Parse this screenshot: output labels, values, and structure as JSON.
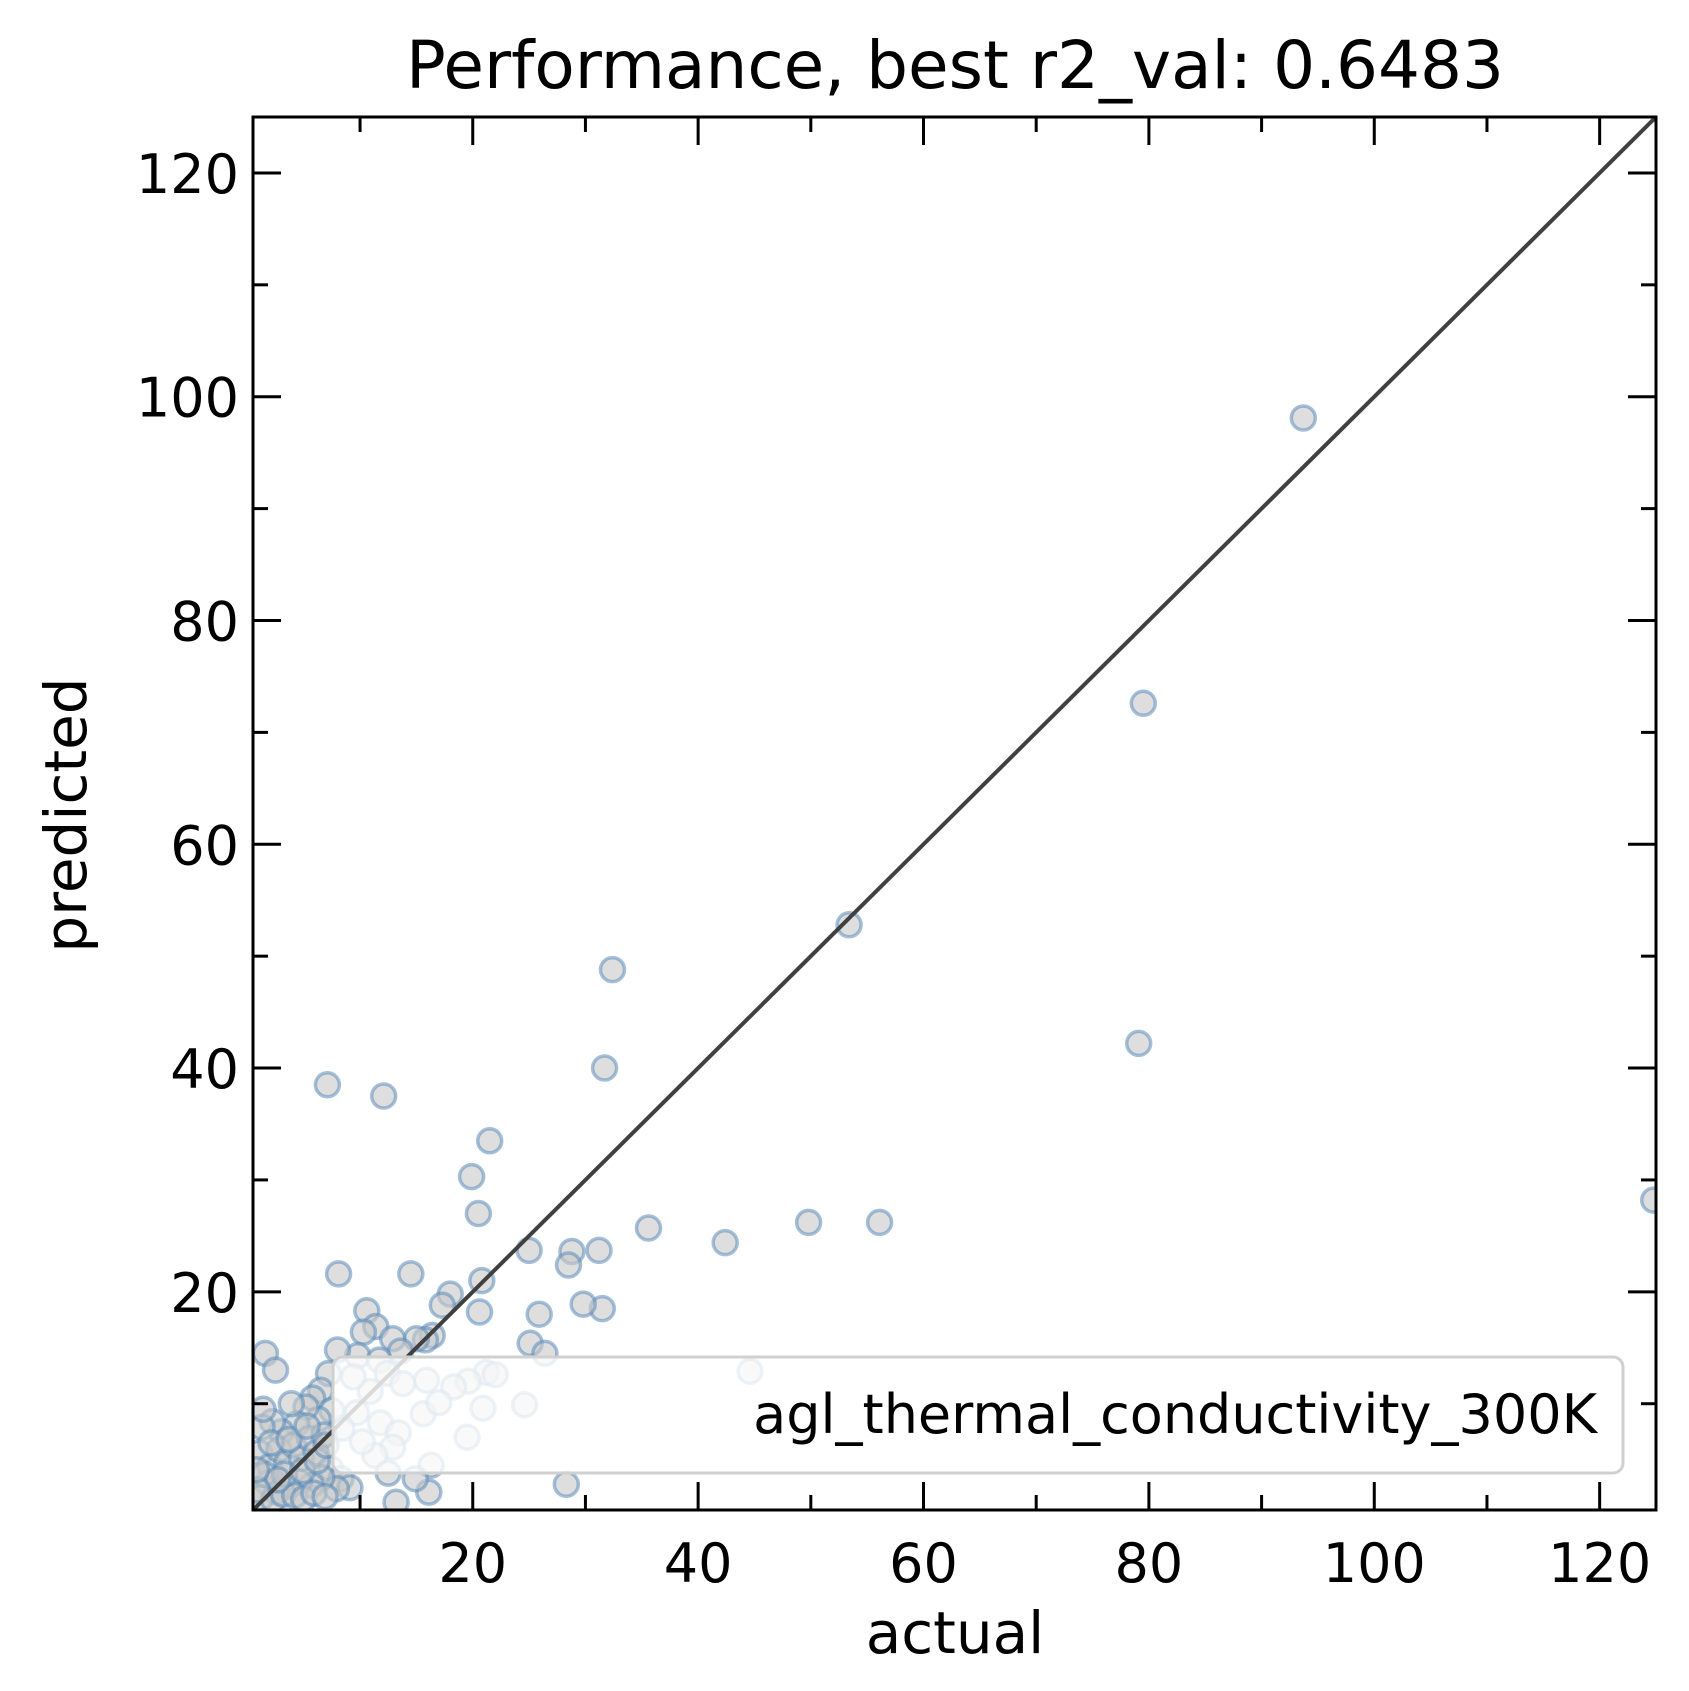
{
  "chart_data": {
    "type": "scatter",
    "title": "Performance, best r2_val: 0.6483",
    "xlabel": "actual",
    "ylabel": "predicted",
    "xlim": [
      0.5,
      125
    ],
    "ylim": [
      0.5,
      125
    ],
    "x_ticks": [
      20,
      40,
      60,
      80,
      100,
      120
    ],
    "y_ticks": [
      20,
      40,
      60,
      80,
      100,
      120
    ],
    "minor_tick_step": 10,
    "legend": {
      "label": "agl_thermal_conductivity_300K",
      "placement": "lower-right"
    },
    "reference_line": "y = x",
    "colors": {
      "marker_face": "#c8c8c8",
      "marker_edge": "#5b8db8",
      "diagonal": "#404040",
      "axes": "#000000"
    },
    "series": [
      {
        "name": "agl_thermal_conductivity_300K",
        "points": [
          [
            93.7,
            98.1
          ],
          [
            79.5,
            72.6
          ],
          [
            79.1,
            42.2
          ],
          [
            53.4,
            52.8
          ],
          [
            56.1,
            26.2
          ],
          [
            49.8,
            26.2
          ],
          [
            42.4,
            24.4
          ],
          [
            35.6,
            25.7
          ],
          [
            32.4,
            48.8
          ],
          [
            31.7,
            40.0
          ],
          [
            31.2,
            23.7
          ],
          [
            31.5,
            18.5
          ],
          [
            29.8,
            18.9
          ],
          [
            28.8,
            23.6
          ],
          [
            28.5,
            22.4
          ],
          [
            25.9,
            18.0
          ],
          [
            25.1,
            15.4
          ],
          [
            26.4,
            14.5
          ],
          [
            25.0,
            23.7
          ],
          [
            28.3,
            2.8
          ],
          [
            21.5,
            33.5
          ],
          [
            19.9,
            30.3
          ],
          [
            20.5,
            27.0
          ],
          [
            20.8,
            21.0
          ],
          [
            20.6,
            18.2
          ],
          [
            21.2,
            12.8
          ],
          [
            20.9,
            9.6
          ],
          [
            19.6,
            12.0
          ],
          [
            19.5,
            7.0
          ],
          [
            18.0,
            19.8
          ],
          [
            17.3,
            18.8
          ],
          [
            16.4,
            16.1
          ],
          [
            15.8,
            15.7
          ],
          [
            15.0,
            15.8
          ],
          [
            14.5,
            21.6
          ],
          [
            15.9,
            12.1
          ],
          [
            15.6,
            9.1
          ],
          [
            16.3,
            4.5
          ],
          [
            16.1,
            2.1
          ],
          [
            14.9,
            3.3
          ],
          [
            12.1,
            37.5
          ],
          [
            7.1,
            38.5
          ],
          [
            8.1,
            21.6
          ],
          [
            10.6,
            18.3
          ],
          [
            11.4,
            16.9
          ],
          [
            10.3,
            16.4
          ],
          [
            12.9,
            15.8
          ],
          [
            13.6,
            14.7
          ],
          [
            9.8,
            14.3
          ],
          [
            8.0,
            14.8
          ],
          [
            11.7,
            13.9
          ],
          [
            12.4,
            12.7
          ],
          [
            13.8,
            11.8
          ],
          [
            10.9,
            11.1
          ],
          [
            9.4,
            12.4
          ],
          [
            7.2,
            12.7
          ],
          [
            6.5,
            11.2
          ],
          [
            5.8,
            10.5
          ],
          [
            9.7,
            9.2
          ],
          [
            11.8,
            8.3
          ],
          [
            13.4,
            7.4
          ],
          [
            12.9,
            6.1
          ],
          [
            11.3,
            5.4
          ],
          [
            10.2,
            6.6
          ],
          [
            8.4,
            7.8
          ],
          [
            7.5,
            9.4
          ],
          [
            6.3,
            8.6
          ],
          [
            5.2,
            9.7
          ],
          [
            4.4,
            8.2
          ],
          [
            3.9,
            10.0
          ],
          [
            3.0,
            7.5
          ],
          [
            2.2,
            8.4
          ],
          [
            1.3,
            7.9
          ],
          [
            1.6,
            14.5
          ],
          [
            2.5,
            13.0
          ],
          [
            1.1,
            5.6
          ],
          [
            2.0,
            4.4
          ],
          [
            2.8,
            5.9
          ],
          [
            3.5,
            4.7
          ],
          [
            4.1,
            6.3
          ],
          [
            4.8,
            5.1
          ],
          [
            5.5,
            6.9
          ],
          [
            6.1,
            5.6
          ],
          [
            6.8,
            7.2
          ],
          [
            7.4,
            4.2
          ],
          [
            8.3,
            3.3
          ],
          [
            9.1,
            2.5
          ],
          [
            12.5,
            3.8
          ],
          [
            13.2,
            1.2
          ],
          [
            7.9,
            2.4
          ],
          [
            6.6,
            3.4
          ],
          [
            5.7,
            2.7
          ],
          [
            4.6,
            3.0
          ],
          [
            3.6,
            2.6
          ],
          [
            2.6,
            2.1
          ],
          [
            1.8,
            2.9
          ],
          [
            1.2,
            1.6
          ],
          [
            1.5,
            3.7
          ],
          [
            2.3,
            1.4
          ],
          [
            3.2,
            1.9
          ],
          [
            4.2,
            1.8
          ],
          [
            5.0,
            1.5
          ],
          [
            5.9,
            2.0
          ],
          [
            6.9,
            1.7
          ],
          [
            3.3,
            3.7
          ],
          [
            2.1,
            6.5
          ],
          [
            1.4,
            9.5
          ],
          [
            3.7,
            6.8
          ],
          [
            4.9,
            4.0
          ],
          [
            5.3,
            8.0
          ],
          [
            6.2,
            4.9
          ],
          [
            7.0,
            6.3
          ],
          [
            2.7,
            3.2
          ],
          [
            0.9,
            2.3
          ],
          [
            0.8,
            4.1
          ],
          [
            24.6,
            9.9
          ],
          [
            44.6,
            12.9
          ],
          [
            22.0,
            12.6
          ],
          [
            18.3,
            11.5
          ],
          [
            17.0,
            10.1
          ],
          [
            124.8,
            28.2
          ]
        ]
      }
    ]
  }
}
